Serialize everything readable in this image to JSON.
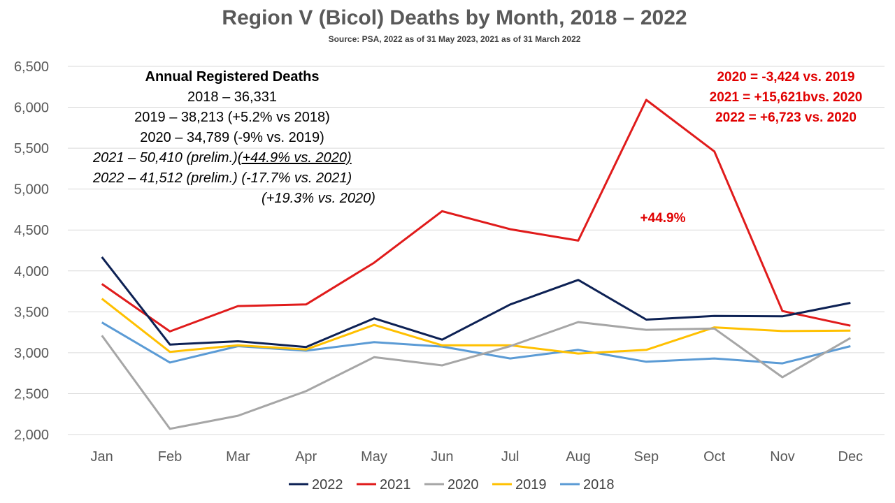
{
  "colors": {
    "2022": "#0d2154",
    "2021": "#e01b1b",
    "2020": "#a6a6a6",
    "2019": "#ffc000",
    "2018": "#5b9bd5",
    "annotation_red": "#e00000"
  },
  "chart_data": {
    "type": "line",
    "title": "Region V (Bicol) Deaths by Month, 2018 – 2022",
    "subtitle": "Source: PSA, 2022 as of 31 May 2023, 2021 as of 31 March 2022",
    "categories": [
      "Jan",
      "Feb",
      "Mar",
      "Apr",
      "May",
      "Jun",
      "Jul",
      "Aug",
      "Sep",
      "Oct",
      "Nov",
      "Dec"
    ],
    "y_ticks": [
      "2,000",
      "2,500",
      "3,000",
      "3,500",
      "4,000",
      "4,500",
      "5,000",
      "5,500",
      "6,000",
      "6,500"
    ],
    "ylim": [
      2000,
      6500
    ],
    "grid": true,
    "legend_position": "bottom",
    "series": [
      {
        "name": "2022",
        "values": [
          4170,
          3100,
          3140,
          3070,
          3420,
          3160,
          3590,
          3890,
          3405,
          3450,
          3445,
          3610
        ]
      },
      {
        "name": "2021",
        "values": [
          3840,
          3260,
          3570,
          3590,
          4100,
          4730,
          4510,
          4370,
          6090,
          5460,
          3510,
          3330
        ]
      },
      {
        "name": "2020",
        "values": [
          3210,
          2070,
          2230,
          2530,
          2945,
          2845,
          3080,
          3375,
          3280,
          3295,
          2700,
          3180
        ]
      },
      {
        "name": "2019",
        "values": [
          3660,
          3010,
          3090,
          3040,
          3340,
          3090,
          3090,
          2990,
          3035,
          3310,
          3265,
          3270
        ]
      },
      {
        "name": "2018",
        "values": [
          3370,
          2880,
          3080,
          3025,
          3130,
          3075,
          2930,
          3035,
          2890,
          2930,
          2870,
          3080
        ]
      }
    ],
    "annotations": {
      "annual_box": {
        "heading": "Annual Registered Deaths",
        "line_2018": "2018 – 36,331",
        "line_2019": "2019 – 38,213 (+5.2% vs 2018)",
        "line_2020": "2020 – 34,789 (-9% vs. 2019)",
        "line_2021_a": "2021 – 50,410 (prelim.)",
        "line_2021_b": "(+44.9% vs. 2020)",
        "line_2022": "2022 – 41,512 (prelim.) (-17.7% vs. 2021)",
        "line_2022_b": "(+19.3% vs. 2020)"
      },
      "comparison_box": {
        "line1": "2020 = -3,424 vs. 2019",
        "line2": "2021 = +15,621bvs. 2020",
        "line3": "2022 = +6,723 vs. 2020"
      },
      "peak_label": "+44.9%"
    }
  }
}
